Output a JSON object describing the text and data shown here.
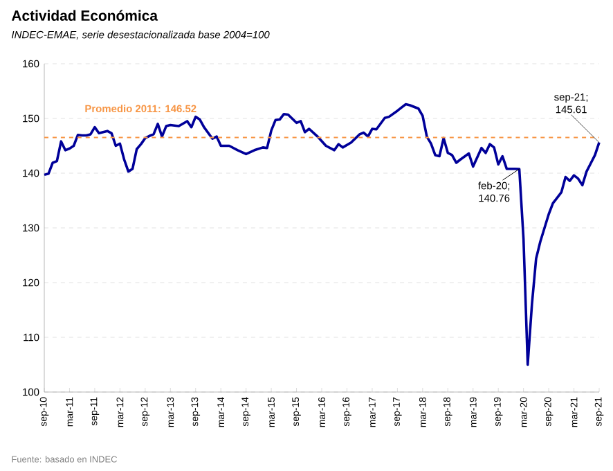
{
  "chart_data": {
    "type": "line",
    "title": "Actividad Económica",
    "subtitle": "INDEC-EMAE, serie desestacionalizada base 2004=100",
    "x": [
      "2010-09",
      "2010-10",
      "2010-11",
      "2010-12",
      "2011-01",
      "2011-02",
      "2011-03",
      "2011-04",
      "2011-05",
      "2011-06",
      "2011-07",
      "2011-08",
      "2011-09",
      "2011-10",
      "2011-11",
      "2011-12",
      "2012-01",
      "2012-02",
      "2012-03",
      "2012-04",
      "2012-05",
      "2012-06",
      "2012-07",
      "2012-08",
      "2012-09",
      "2012-10",
      "2012-11",
      "2012-12",
      "2013-01",
      "2013-02",
      "2013-03",
      "2013-05",
      "2013-07",
      "2013-08",
      "2013-09",
      "2013-10",
      "2013-11",
      "2014-01",
      "2014-02",
      "2014-03",
      "2014-05",
      "2014-07",
      "2014-09",
      "2014-11",
      "2015-01",
      "2015-02",
      "2015-03",
      "2015-04",
      "2015-05",
      "2015-06",
      "2015-07",
      "2015-09",
      "2015-10",
      "2015-11",
      "2015-12",
      "2016-02",
      "2016-04",
      "2016-06",
      "2016-07",
      "2016-08",
      "2016-10",
      "2016-12",
      "2017-01",
      "2017-02",
      "2017-03",
      "2017-04",
      "2017-06",
      "2017-07",
      "2017-09",
      "2017-10",
      "2017-11",
      "2017-12",
      "2018-02",
      "2018-03",
      "2018-04",
      "2018-05",
      "2018-06",
      "2018-07",
      "2018-08",
      "2018-09",
      "2018-10",
      "2018-11",
      "2018-12",
      "2019-02",
      "2019-03",
      "2019-05",
      "2019-06",
      "2019-07",
      "2019-08",
      "2019-09",
      "2019-10",
      "2019-11",
      "2019-12",
      "2020-01",
      "2020-02",
      "2020-03",
      "2020-04",
      "2020-05",
      "2020-06",
      "2020-07",
      "2020-08",
      "2020-09",
      "2020-10",
      "2020-11",
      "2020-12",
      "2021-01",
      "2021-02",
      "2021-03",
      "2021-04",
      "2021-05",
      "2021-06",
      "2021-07",
      "2021-08",
      "2021-09"
    ],
    "series": [
      {
        "color": "#000099",
        "values": [
          139.7,
          139.9,
          141.9,
          142.2,
          145.8,
          144.2,
          144.5,
          145.0,
          147.0,
          146.9,
          146.9,
          147.1,
          148.4,
          147.3,
          147.5,
          147.7,
          147.3,
          145.0,
          145.4,
          142.5,
          140.3,
          140.8,
          144.4,
          145.3,
          146.4,
          146.8,
          147.1,
          149.0,
          146.7,
          148.6,
          148.8,
          148.6,
          149.5,
          148.4,
          150.3,
          149.8,
          148.4,
          146.3,
          146.7,
          145.0,
          145.0,
          144.2,
          143.5,
          144.2,
          144.7,
          144.6,
          147.8,
          149.7,
          149.8,
          150.8,
          150.7,
          149.2,
          149.5,
          147.5,
          148.1,
          146.7,
          145.0,
          144.2,
          145.3,
          144.7,
          145.6,
          147.1,
          147.4,
          146.7,
          148.1,
          148.0,
          150.1,
          150.3,
          151.4,
          152.0,
          152.6,
          152.4,
          151.8,
          150.5,
          146.7,
          145.4,
          143.3,
          143.1,
          146.4,
          143.7,
          143.3,
          141.9,
          142.5,
          143.6,
          141.2,
          144.6,
          143.7,
          145.3,
          144.7,
          141.6,
          143.1,
          140.8,
          140.8,
          140.8,
          140.76,
          128,
          105.0,
          116,
          124.4,
          127.5,
          130,
          132.5,
          134.5,
          135.5,
          136.5,
          139.3,
          138.6,
          139.6,
          139.0,
          137.8,
          140.3,
          141.8,
          143.3,
          145.61
        ]
      }
    ],
    "xlim": [
      "2010-09",
      "2021-09"
    ],
    "ylim": [
      100,
      160
    ],
    "yticks": [
      100,
      110,
      120,
      130,
      140,
      150,
      160
    ],
    "xticks": [
      {
        "value": "2010-09",
        "label": "sep-10"
      },
      {
        "value": "2011-03",
        "label": "mar-11"
      },
      {
        "value": "2011-09",
        "label": "sep-11"
      },
      {
        "value": "2012-03",
        "label": "mar-12"
      },
      {
        "value": "2012-09",
        "label": "sep-12"
      },
      {
        "value": "2013-03",
        "label": "mar-13"
      },
      {
        "value": "2013-09",
        "label": "sep-13"
      },
      {
        "value": "2014-03",
        "label": "mar-14"
      },
      {
        "value": "2014-09",
        "label": "sep-14"
      },
      {
        "value": "2015-03",
        "label": "mar-15"
      },
      {
        "value": "2015-09",
        "label": "sep-15"
      },
      {
        "value": "2016-03",
        "label": "mar-16"
      },
      {
        "value": "2016-09",
        "label": "sep-16"
      },
      {
        "value": "2017-03",
        "label": "mar-17"
      },
      {
        "value": "2017-09",
        "label": "sep-17"
      },
      {
        "value": "2018-03",
        "label": "mar-18"
      },
      {
        "value": "2018-09",
        "label": "sep-18"
      },
      {
        "value": "2019-03",
        "label": "mar-19"
      },
      {
        "value": "2019-09",
        "label": "sep-19"
      },
      {
        "value": "2020-03",
        "label": "mar-20"
      },
      {
        "value": "2020-09",
        "label": "sep-20"
      },
      {
        "value": "2021-03",
        "label": "mar-21"
      },
      {
        "value": "2021-09",
        "label": "sep-21"
      }
    ],
    "ref_lines": [
      {
        "axis": "y",
        "value": 146.52,
        "label": "Promedio 2011: 146.52",
        "color": "#f79646",
        "line_style": "dashed"
      }
    ],
    "annotations": [
      {
        "text": "feb-20; 140.76",
        "x": "2020-02",
        "y": 140.76
      },
      {
        "text": "sep-21; 145.61",
        "x": "2021-09",
        "y": 145.61
      },
      "Fuente: basado en INDEC"
    ],
    "grid": "y",
    "marker": "none",
    "line_style": "solid"
  }
}
